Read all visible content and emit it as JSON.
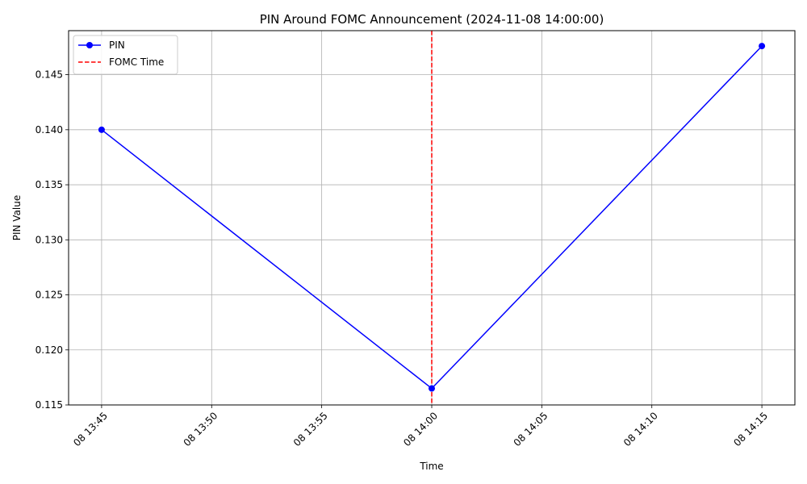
{
  "chart_data": {
    "type": "line",
    "title": "PIN Around FOMC Announcement (2024-11-08 14:00:00)",
    "xlabel": "Time",
    "ylabel": "PIN Value",
    "x_tick_labels": [
      "08 13:45",
      "08 13:50",
      "08 13:55",
      "08 14:00",
      "08 14:05",
      "08 14:10",
      "08 14:15"
    ],
    "x_ticks": [
      "2024-11-08 13:45",
      "2024-11-08 13:50",
      "2024-11-08 13:55",
      "2024-11-08 14:00",
      "2024-11-08 14:05",
      "2024-11-08 14:10",
      "2024-11-08 14:15"
    ],
    "xlim": [
      "2024-11-08 13:43:30",
      "2024-11-08 14:16:30"
    ],
    "y_ticks": [
      0.115,
      0.12,
      0.125,
      0.13,
      0.135,
      0.14,
      0.145
    ],
    "y_tick_labels": [
      "0.115",
      "0.120",
      "0.125",
      "0.130",
      "0.135",
      "0.140",
      "0.145"
    ],
    "ylim": [
      0.115,
      0.149
    ],
    "grid": true,
    "legend_position": "top-left",
    "series": [
      {
        "name": "PIN",
        "color": "#0000ff",
        "marker": "circle",
        "x": [
          "2024-11-08 13:45",
          "2024-11-08 14:00",
          "2024-11-08 14:15"
        ],
        "y": [
          0.14,
          0.1165,
          0.1476
        ]
      }
    ],
    "vlines": [
      {
        "name": "FOMC Time",
        "x": "2024-11-08 14:00",
        "color": "#ff0000",
        "style": "dashed"
      }
    ]
  }
}
